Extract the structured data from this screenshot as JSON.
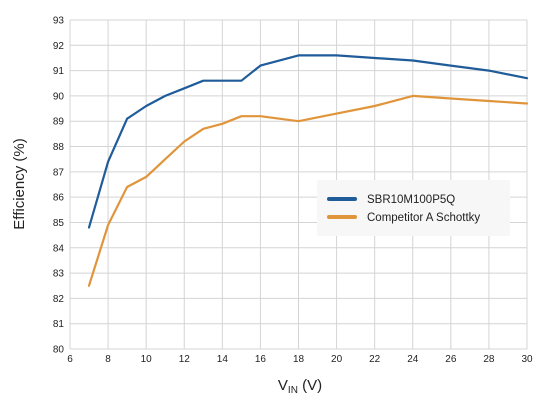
{
  "chart_data": {
    "type": "line",
    "title": "",
    "xlabel": {
      "main": "V",
      "sub": "IN",
      "unit": " (V)"
    },
    "ylabel": "Efficiency (%)",
    "xlim": [
      6,
      30
    ],
    "ylim": [
      80,
      93
    ],
    "xticks": [
      6,
      8,
      10,
      12,
      14,
      16,
      18,
      20,
      22,
      24,
      26,
      28,
      30
    ],
    "yticks": [
      80,
      81,
      82,
      83,
      84,
      85,
      86,
      87,
      88,
      89,
      90,
      91,
      92,
      93
    ],
    "grid": true,
    "legend_position": "right",
    "series": [
      {
        "name": "SBR10M100P5Q",
        "color": "#1f5c99",
        "x": [
          7,
          8,
          9,
          10,
          11,
          12,
          13,
          14,
          15,
          16,
          18,
          20,
          22,
          24,
          26,
          28,
          30
        ],
        "y": [
          84.8,
          87.4,
          89.1,
          89.6,
          90.0,
          90.3,
          90.6,
          90.6,
          90.6,
          91.2,
          91.6,
          91.6,
          91.5,
          91.4,
          91.2,
          91.0,
          90.7
        ]
      },
      {
        "name": "Competitor A Schottky",
        "color": "#e0953a",
        "x": [
          7,
          8,
          9,
          10,
          11,
          12,
          13,
          14,
          15,
          16,
          18,
          20,
          22,
          24,
          26,
          28,
          30
        ],
        "y": [
          82.5,
          84.9,
          86.4,
          86.8,
          87.5,
          88.2,
          88.7,
          88.9,
          89.2,
          89.2,
          89.0,
          89.3,
          89.6,
          90.0,
          89.9,
          89.8,
          89.7
        ]
      }
    ]
  }
}
